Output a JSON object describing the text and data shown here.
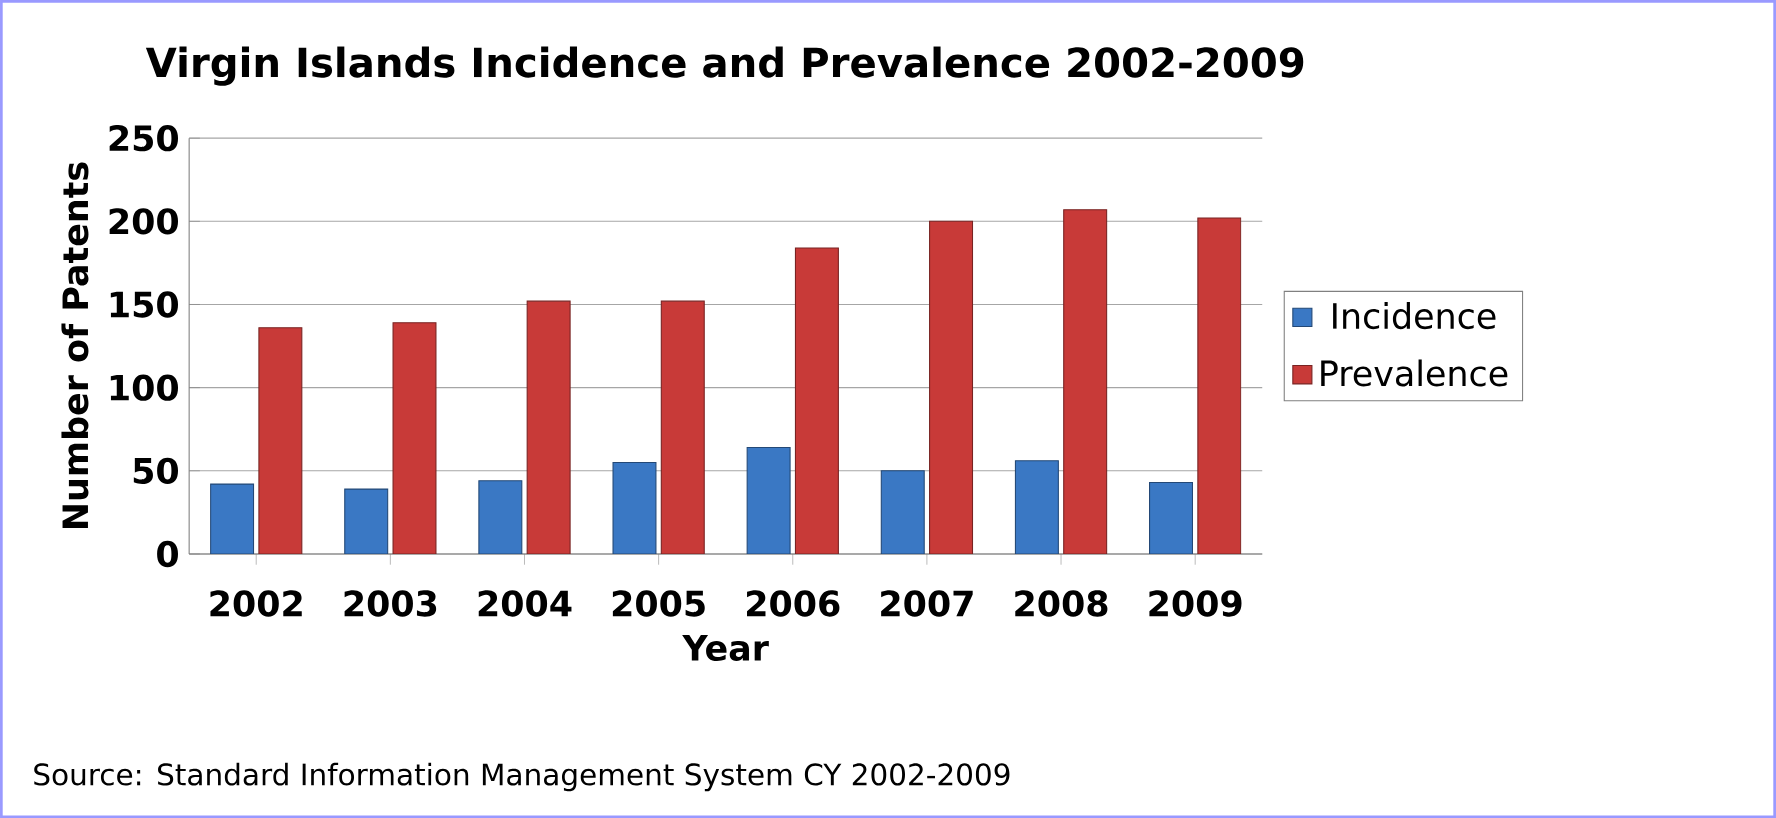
{
  "chart_data": {
    "type": "bar",
    "title": "Virgin Islands  Incidence and Prevalence 2002-2009",
    "xlabel": "Year",
    "ylabel": "Number of Patents",
    "categories": [
      "2002",
      "2003",
      "2004",
      "2005",
      "2006",
      "2007",
      "2008",
      "2009"
    ],
    "series": [
      {
        "name": "Incidence",
        "color": "#3a78c4",
        "values": [
          42,
          39,
          44,
          55,
          64,
          50,
          56,
          43
        ]
      },
      {
        "name": "Prevalence",
        "color": "#c83a38",
        "values": [
          136,
          139,
          152,
          152,
          184,
          200,
          207,
          202
        ]
      }
    ],
    "ylim": [
      0,
      250
    ],
    "yticks": [
      0,
      50,
      100,
      150,
      200,
      250
    ],
    "grid": "y",
    "legend": "right",
    "annotations": [
      "Source: Standard Information Management System CY 2002-2009"
    ]
  }
}
